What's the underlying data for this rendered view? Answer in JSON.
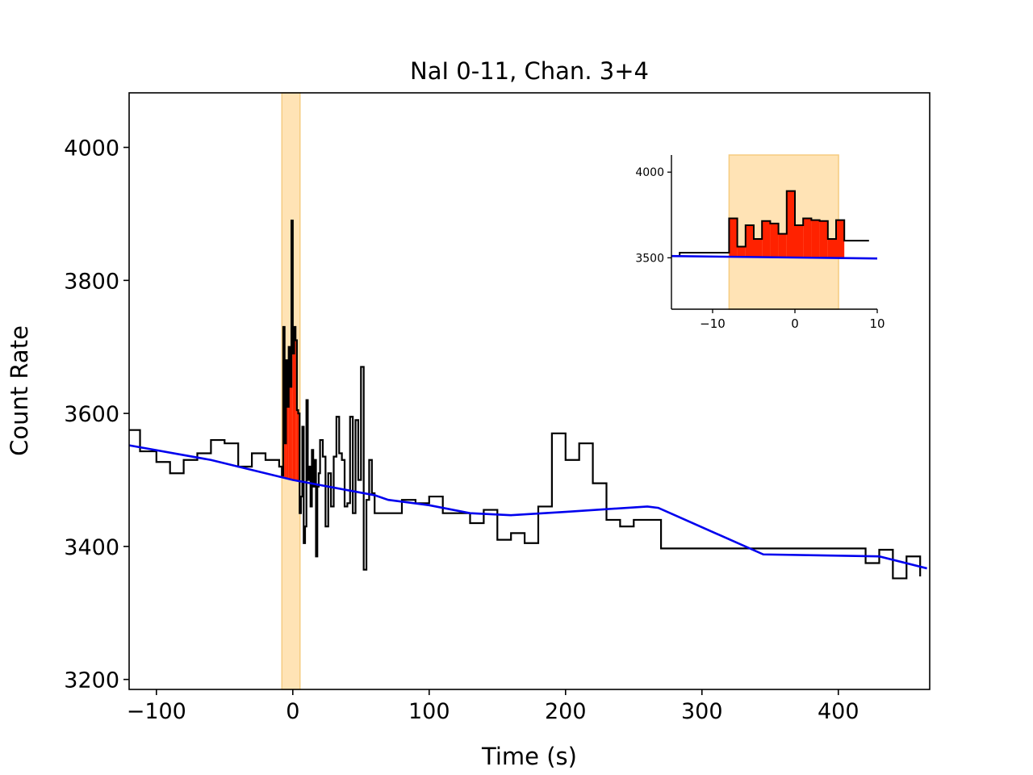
{
  "chart_data": {
    "type": "line",
    "title": "NaI 0-11, Chan. 3+4",
    "xlabel": "Time (s)",
    "ylabel": "Count Rate",
    "xlim": [
      -120,
      467
    ],
    "ylim": [
      3185,
      4082
    ],
    "xticks": [
      -100,
      0,
      100,
      200,
      300,
      400
    ],
    "yticks": [
      3200,
      3400,
      3600,
      3800,
      4000
    ],
    "xtick_labels": [
      "−100",
      "0",
      "100",
      "200",
      "300",
      "400"
    ],
    "ytick_labels": [
      "3200",
      "3400",
      "3600",
      "3800",
      "4000"
    ],
    "highlight_interval": [
      -8,
      5.3
    ],
    "colors": {
      "data": "#000000",
      "background_model": "#0000ee",
      "source_fill": "#ff2200",
      "interval": "#ffe3b5",
      "interval_edge": "#f5cc80"
    },
    "series": [
      {
        "name": "lightcurve",
        "style": "step",
        "edges": [
          -120,
          -112,
          -100,
          -90,
          -80,
          -70,
          -60,
          -50,
          -40,
          -30,
          -20,
          -10,
          -8,
          -7,
          -6,
          -5,
          -4,
          -3,
          -2,
          -1,
          0,
          1,
          2,
          3,
          4,
          5,
          6,
          7,
          8,
          9,
          10,
          11,
          12,
          13,
          14,
          15,
          16,
          17,
          18,
          19,
          20,
          22,
          24,
          26,
          28,
          30,
          32,
          34,
          36,
          38,
          40,
          42,
          44,
          46,
          48,
          50,
          52,
          54,
          56,
          58,
          60,
          70,
          80,
          90,
          100,
          110,
          120,
          130,
          140,
          150,
          160,
          170,
          180,
          190,
          200,
          210,
          220,
          230,
          240,
          250,
          260,
          270,
          420,
          430,
          440,
          450,
          460
        ],
        "values": [
          3575,
          3543,
          3527,
          3510,
          3530,
          3540,
          3560,
          3555,
          3520,
          3540,
          3530,
          3520,
          3507,
          3730,
          3555,
          3680,
          3610,
          3700,
          3640,
          3890,
          3690,
          3730,
          3710,
          3605,
          3600,
          3450,
          3475,
          3580,
          3405,
          3430,
          3620,
          3500,
          3520,
          3460,
          3545,
          3490,
          3530,
          3385,
          3490,
          3510,
          3560,
          3535,
          3430,
          3510,
          3460,
          3535,
          3595,
          3540,
          3530,
          3460,
          3465,
          3595,
          3450,
          3590,
          3500,
          3670,
          3365,
          3470,
          3530,
          3480,
          3450,
          3450,
          3470,
          3465,
          3475,
          3450,
          3450,
          3435,
          3455,
          3410,
          3420,
          3405,
          3460,
          3570,
          3530,
          3555,
          3495,
          3440,
          3430,
          3440,
          3440,
          3397,
          3375,
          3395,
          3352,
          3385,
          3355
        ]
      },
      {
        "name": "background_model",
        "style": "line",
        "x": [
          -120,
          -60,
          0,
          60,
          70,
          100,
          130,
          160,
          200,
          260,
          268,
          345,
          430,
          465
        ],
        "y": [
          3552,
          3530,
          3500,
          3477,
          3470,
          3462,
          3450,
          3447,
          3452,
          3460,
          3458,
          3388,
          3385,
          3367
        ]
      }
    ],
    "inset": {
      "xlim": [
        -15,
        10
      ],
      "ylim": [
        3200,
        4100
      ],
      "xticks": [
        -10,
        0,
        10
      ],
      "yticks": [
        3500,
        4000
      ],
      "xtick_labels": [
        "−10",
        "0",
        "10"
      ],
      "ytick_labels": [
        "3500",
        "4000"
      ],
      "highlight_interval": [
        -8,
        5.3
      ],
      "edges": [
        -15,
        -14,
        -8,
        -7,
        -6,
        -5,
        -4,
        -3,
        -2,
        -1,
        0,
        1,
        2,
        3,
        4,
        5,
        6,
        7,
        8,
        9
      ],
      "values": [
        3510,
        3530,
        3730,
        3565,
        3690,
        3610,
        3715,
        3700,
        3640,
        3890,
        3690,
        3730,
        3720,
        3715,
        3610,
        3720,
        3600,
        3600,
        3600,
        3560
      ],
      "background_model": {
        "x": [
          -15,
          10
        ],
        "y": [
          3510,
          3496
        ]
      },
      "source_interval": [
        -8,
        5.3
      ]
    }
  }
}
